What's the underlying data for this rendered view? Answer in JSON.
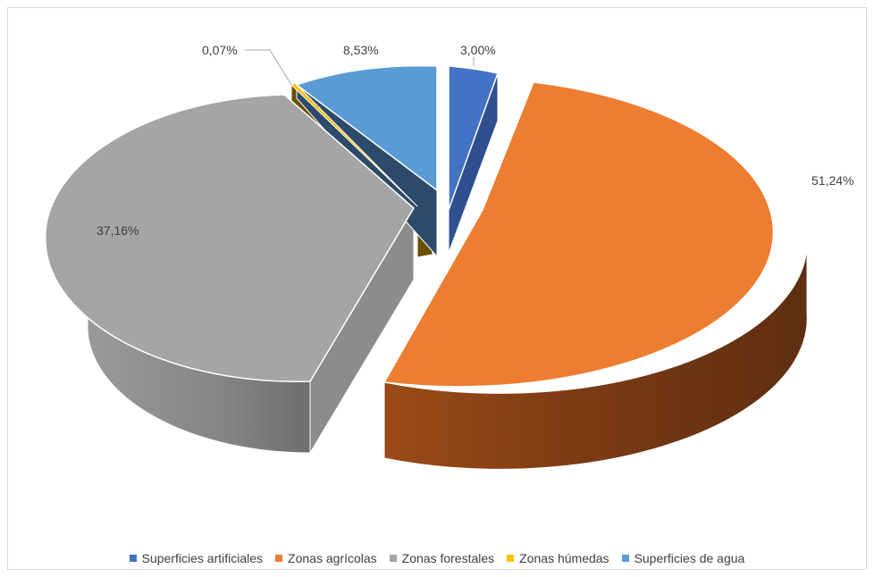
{
  "chart_data": {
    "type": "pie",
    "style": "3d-exploded",
    "legend_position": "bottom",
    "series": [
      {
        "name": "Superficies artificiales",
        "value": 3.0,
        "label": "3,00%",
        "color": "#4472C4"
      },
      {
        "name": "Zonas agrícolas",
        "value": 51.24,
        "label": "51,24%",
        "color": "#ED7D31"
      },
      {
        "name": "Zonas forestales",
        "value": 37.16,
        "label": "37,16%",
        "color": "#A5A5A5"
      },
      {
        "name": "Zonas húmedas",
        "value": 0.07,
        "label": "0,07%",
        "color": "#FFC000"
      },
      {
        "name": "Superficies de agua",
        "value": 8.53,
        "label": "8,53%",
        "color": "#5B9BD5"
      }
    ]
  }
}
